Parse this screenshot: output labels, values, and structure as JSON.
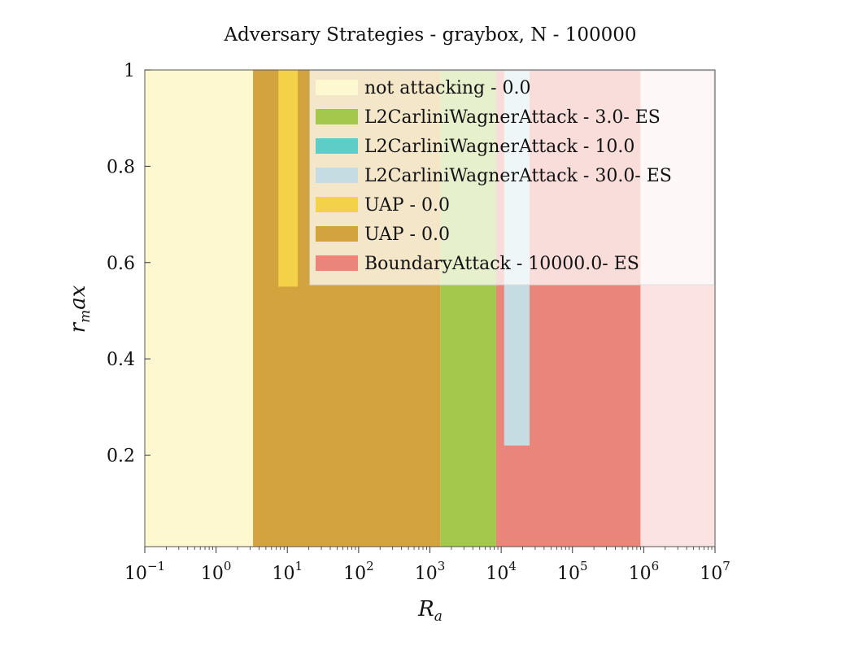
{
  "chart_data": {
    "type": "area",
    "title": "Adversary Strategies - graybox, N - 100000",
    "xlabel": "R",
    "xlabel_sub": "a",
    "ylabel": "r",
    "ylabel_sub": "m",
    "ylabel_rest": "ax",
    "x_scale": "log",
    "xlim": [
      0.1,
      10000000
    ],
    "ylim": [
      0.01,
      1.0
    ],
    "x_ticks": [
      {
        "base": "10",
        "exp": "−1"
      },
      {
        "base": "10",
        "exp": "0"
      },
      {
        "base": "10",
        "exp": "1"
      },
      {
        "base": "10",
        "exp": "2"
      },
      {
        "base": "10",
        "exp": "3"
      },
      {
        "base": "10",
        "exp": "4"
      },
      {
        "base": "10",
        "exp": "5"
      },
      {
        "base": "10",
        "exp": "6"
      },
      {
        "base": "10",
        "exp": "7"
      }
    ],
    "x_tick_values": [
      0.1,
      1,
      10,
      100,
      1000,
      10000,
      100000,
      1000000,
      10000000
    ],
    "y_ticks": [
      "0.2",
      "0.4",
      "0.6",
      "0.8",
      "1"
    ],
    "y_tick_values": [
      0.2,
      0.4,
      0.6,
      0.8,
      1.0
    ],
    "legend_position": "top-right",
    "series": [
      {
        "name": "not attacking - 0.0",
        "color": "#fdf8d0",
        "regions": [
          {
            "x": [
              0.1,
              3.3
            ],
            "y_low": 0.01,
            "y_high": 1.0
          }
        ]
      },
      {
        "name": "L2CarliniWagnerAttack - 3.0- ES",
        "color": "#a4c84c",
        "regions": [
          {
            "x": [
              1400,
              8500
            ],
            "y_low": 0.01,
            "y_high": 1.0
          }
        ]
      },
      {
        "name": "L2CarliniWagnerAttack - 10.0",
        "color": "#5ecdc8",
        "regions": []
      },
      {
        "name": "L2CarliniWagnerAttack - 30.0- ES",
        "color": "#c5dde2",
        "regions": [
          {
            "x": [
              11000,
              25000
            ],
            "y_low": 0.22,
            "y_high": 1.0
          }
        ]
      },
      {
        "name": "UAP - 0.0",
        "color": "#f3d24a",
        "regions": [
          {
            "x": [
              7.5,
              14
            ],
            "y_low": 0.55,
            "y_high": 1.0
          }
        ]
      },
      {
        "name": "UAP - 0.0",
        "color": "#d3a43e",
        "regions": [
          {
            "x": [
              3.3,
              1400
            ],
            "y_low": 0.01,
            "y_high": 1.0
          }
        ]
      },
      {
        "name": "BoundaryAttack - 10000.0- ES",
        "color": "#ea8679",
        "regions": [
          {
            "x": [
              8500,
              900000
            ],
            "y_low": 0.01,
            "y_high": 1.0
          }
        ]
      }
    ],
    "background_region": {
      "x": [
        400000,
        10000000
      ],
      "y_low": 0.01,
      "y_high": 1.0,
      "color": "#fbe3e2"
    }
  }
}
